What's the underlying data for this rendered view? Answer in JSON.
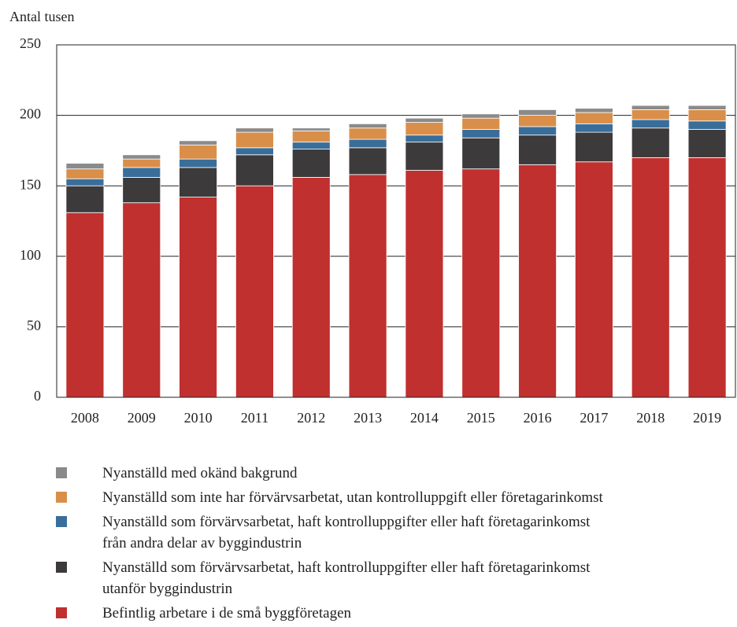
{
  "chart_data": {
    "type": "stacked_bar",
    "ylabel": "Antal tusen",
    "categories": [
      "2008",
      "2009",
      "2010",
      "2011",
      "2012",
      "2013",
      "2014",
      "2015",
      "2016",
      "2017",
      "2018",
      "2019"
    ],
    "series": [
      {
        "name": "Befintlig arbetare i de små byggföretagen",
        "color": "#c0302f",
        "values": [
          131,
          138,
          142,
          150,
          156,
          158,
          161,
          162,
          165,
          167,
          170,
          170
        ]
      },
      {
        "name": "Nyanställd som förvärvsarbetat, haft kontrolluppgifter eller haft företagarinkomst\nutanför byggindustrin",
        "color": "#3d3a3b",
        "values": [
          19,
          18,
          21,
          22,
          20,
          19,
          20,
          22,
          21,
          21,
          21,
          20
        ]
      },
      {
        "name": "Nyanställd som förvärvsarbetat, haft kontrolluppgifter eller haft företagarinkomst\nfrån andra delar av byggindustrin",
        "color": "#3a6e9a",
        "values": [
          5,
          7,
          6,
          5,
          5,
          6,
          5,
          6,
          6,
          6,
          6,
          6
        ]
      },
      {
        "name": "Nyanställd som inte har förvärvsarbetat, utan kontrolluppgift eller företagarinkomst",
        "color": "#d98f4a",
        "values": [
          7,
          6,
          10,
          11,
          8,
          8,
          9,
          8,
          8,
          8,
          7,
          8
        ]
      },
      {
        "name": "Nyanställd med okänd bakgrund",
        "color": "#8a8a8a",
        "values": [
          4,
          3,
          3,
          3,
          2,
          3,
          3,
          3,
          4,
          3,
          3,
          3
        ]
      }
    ],
    "ylim": [
      0,
      250
    ],
    "yticks": [
      0,
      50,
      100,
      150,
      200,
      250
    ],
    "grid": true
  }
}
